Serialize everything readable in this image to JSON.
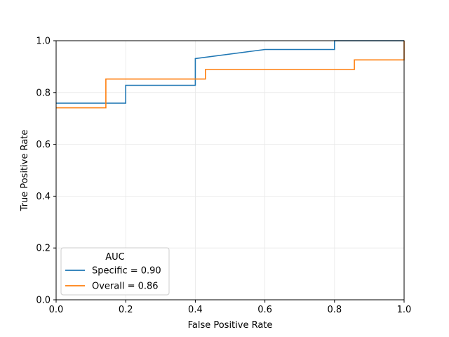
{
  "chart_data": {
    "type": "line",
    "title": "",
    "xlabel": "False Positive Rate",
    "ylabel": "True Positive Rate",
    "xlim": [
      0,
      1
    ],
    "ylim": [
      0,
      1
    ],
    "x_ticks": [
      "0.0",
      "0.2",
      "0.4",
      "0.6",
      "0.8",
      "1.0"
    ],
    "y_ticks": [
      "0.0",
      "0.2",
      "0.4",
      "0.6",
      "0.8",
      "1.0"
    ],
    "grid": true,
    "legend": {
      "title": "AUC",
      "placement": "lower-left"
    },
    "series": [
      {
        "name": "Specific = 0.90",
        "color": "#1f77b4",
        "x": [
          0.0,
          0.2,
          0.2,
          0.4,
          0.4,
          0.6,
          0.8,
          0.8,
          1.0
        ],
        "y": [
          0.759,
          0.759,
          0.828,
          0.828,
          0.931,
          0.966,
          0.966,
          1.0,
          1.0
        ]
      },
      {
        "name": "Overall = 0.86",
        "color": "#ff7f0e",
        "x": [
          0.0,
          0.143,
          0.143,
          0.429,
          0.429,
          0.857,
          0.857,
          1.0,
          1.0
        ],
        "y": [
          0.741,
          0.741,
          0.852,
          0.852,
          0.889,
          0.889,
          0.926,
          0.926,
          1.0
        ]
      }
    ]
  }
}
